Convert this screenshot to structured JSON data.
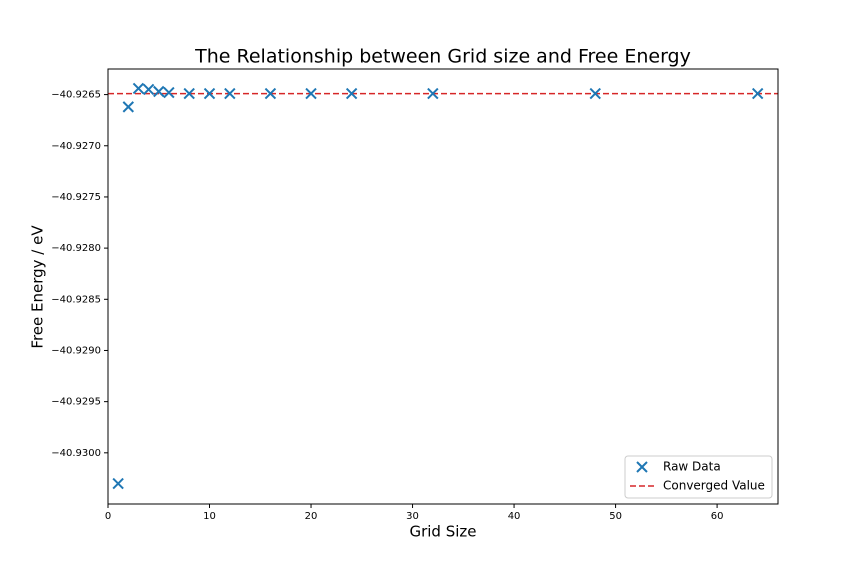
{
  "chart_data": {
    "type": "scatter",
    "title": "The Relationship between Grid size and Free Energy",
    "x_label": "Grid Size",
    "y_label": "Free Energy / eV",
    "x": [
      1,
      2,
      3,
      4,
      5,
      6,
      8,
      10,
      12,
      16,
      20,
      24,
      32,
      48,
      64
    ],
    "series": [
      {
        "name": "Raw Data",
        "color": "#1f77b4",
        "values": [
          -40.9303,
          -40.92662,
          -40.92644,
          -40.92645,
          -40.92647,
          -40.92648,
          -40.92649,
          -40.92649,
          -40.92649,
          -40.92649,
          -40.92649,
          -40.92649,
          -40.92649,
          -40.92649,
          -40.92649
        ]
      }
    ],
    "hline": {
      "name": "Converged Value",
      "color": "#d62728",
      "value": -40.92649
    },
    "xlim": [
      0,
      66
    ],
    "ylim": [
      -40.9305,
      -40.92625
    ],
    "xticks": [
      0,
      10,
      20,
      30,
      40,
      50,
      60
    ],
    "yticks": [
      {
        "value": -40.9265,
        "label": "−40.9265"
      },
      {
        "value": -40.927,
        "label": "−40.9270"
      },
      {
        "value": -40.9275,
        "label": "−40.9275"
      },
      {
        "value": -40.928,
        "label": "−40.9280"
      },
      {
        "value": -40.9285,
        "label": "−40.9285"
      },
      {
        "value": -40.929,
        "label": "−40.9290"
      },
      {
        "value": -40.9295,
        "label": "−40.9295"
      },
      {
        "value": -40.93,
        "label": "−40.9300"
      }
    ],
    "legend": "lower right"
  }
}
